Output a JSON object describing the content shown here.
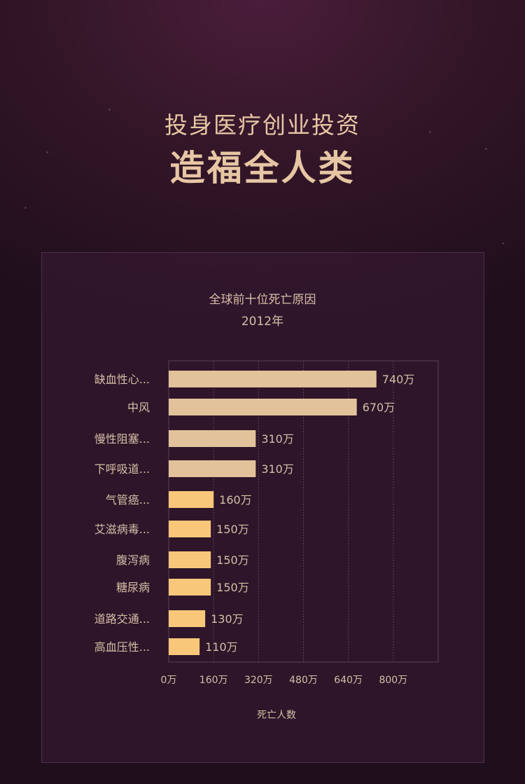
{
  "headline": {
    "subtitle": "投身医疗创业投资",
    "title": "造福全人类"
  },
  "colors": {
    "headline": "#e7c6a4",
    "bar_primary": "#e2c29a",
    "bar_secondary": "#f8c77a",
    "text": "#d6bfa8"
  },
  "chart_data": {
    "type": "bar",
    "orientation": "horizontal",
    "title": "全球前十位死亡原因",
    "subtitle": "2012年",
    "xlabel": "死亡人数",
    "ylabel": "",
    "xlim": [
      0,
      960
    ],
    "x_ticks": [
      0,
      160,
      320,
      480,
      640,
      800
    ],
    "x_tick_labels": [
      "0万",
      "160万",
      "320万",
      "480万",
      "640万",
      "800万"
    ],
    "grid": true,
    "categories": [
      "缺血性心...",
      "中风",
      "慢性阻塞...",
      "下呼吸道...",
      "气管癌...",
      "艾滋病毒...",
      "腹泻病",
      "糖尿病",
      "道路交通...",
      "高血压性..."
    ],
    "values": [
      740,
      670,
      310,
      310,
      160,
      150,
      150,
      150,
      130,
      110
    ],
    "value_labels": [
      "740万",
      "670万",
      "310万",
      "310万",
      "160万",
      "150万",
      "150万",
      "150万",
      "130万",
      "110万"
    ],
    "bar_colors": [
      "#e2c29a",
      "#e2c29a",
      "#e2c29a",
      "#e2c29a",
      "#f8c77a",
      "#f8c77a",
      "#f8c77a",
      "#f8c77a",
      "#f8c77a",
      "#f8c77a"
    ]
  }
}
